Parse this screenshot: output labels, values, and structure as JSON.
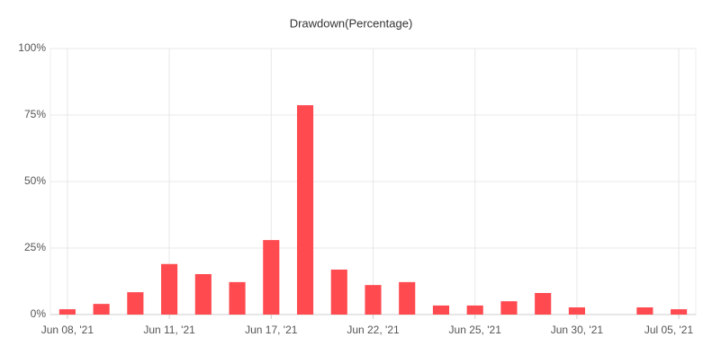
{
  "chart_data": {
    "type": "bar",
    "title": "Drawdown(Percentage)",
    "categories": [
      "Jun 08, '21",
      null,
      null,
      "Jun 11, '21",
      null,
      null,
      "Jun 17, '21",
      null,
      null,
      "Jun 22, '21",
      null,
      null,
      "Jun 25, '21",
      null,
      null,
      "Jun 30, '21",
      null,
      null,
      "Jul 05, '21"
    ],
    "values": [
      2,
      4,
      8.4,
      19,
      15.2,
      12.2,
      28,
      78.7,
      16.9,
      11.1,
      12.2,
      3.4,
      3.4,
      5,
      8.1,
      2.7,
      0,
      2.7,
      2
    ],
    "color": "#ff4a50",
    "ylim": [
      0,
      100
    ],
    "yticks": [
      {
        "value": 0,
        "label": "0%"
      },
      {
        "value": 25,
        "label": "25%"
      },
      {
        "value": 50,
        "label": "50%"
      },
      {
        "value": 75,
        "label": "75%"
      },
      {
        "value": 100,
        "label": "100%"
      }
    ],
    "grid": true
  }
}
